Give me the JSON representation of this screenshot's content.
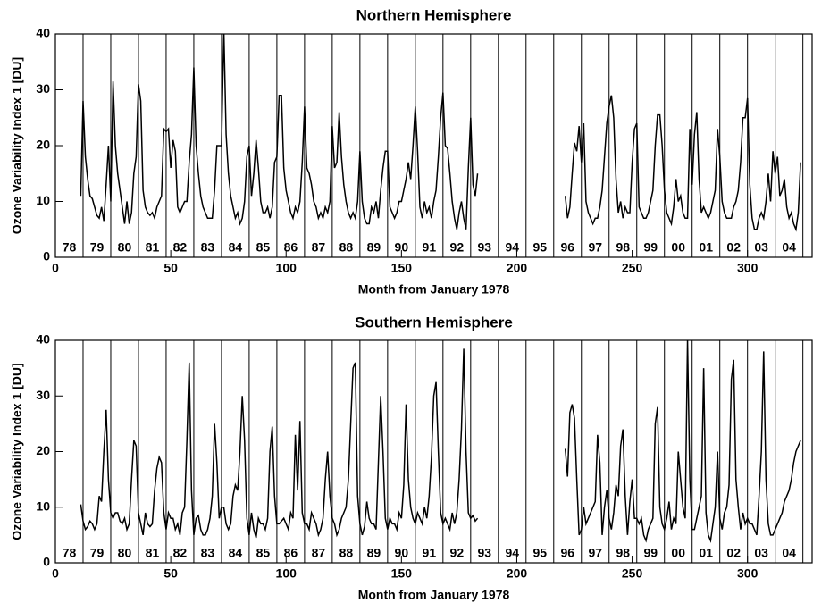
{
  "chart_data": [
    {
      "type": "line",
      "title": "Northern Hemisphere",
      "x_label": "Month from January 1978",
      "y_label": "Ozone Variability Index 1 [DU]",
      "xlim": [
        0,
        328
      ],
      "ylim": [
        0,
        40
      ],
      "xticks": [
        0,
        50,
        100,
        150,
        200,
        250,
        300
      ],
      "yticks": [
        0,
        10,
        20,
        30,
        40
      ],
      "year_lines": [
        12,
        24,
        36,
        48,
        60,
        72,
        84,
        96,
        108,
        120,
        132,
        144,
        156,
        168,
        180,
        192,
        204,
        216,
        228,
        240,
        252,
        264,
        276,
        288,
        300,
        312,
        324
      ],
      "year_labels": [
        "78",
        "79",
        "80",
        "81",
        "82",
        "83",
        "84",
        "85",
        "86",
        "87",
        "88",
        "89",
        "90",
        "91",
        "92",
        "93",
        "94",
        "95",
        "96",
        "97",
        "98",
        "99",
        "00",
        "01",
        "02",
        "03",
        "04"
      ],
      "x": [
        11,
        12,
        13,
        14,
        15,
        16,
        17,
        18,
        19,
        20,
        21,
        22,
        23,
        24,
        25,
        26,
        27,
        28,
        29,
        30,
        31,
        32,
        33,
        34,
        35,
        36,
        37,
        38,
        39,
        40,
        41,
        42,
        43,
        44,
        45,
        46,
        47,
        48,
        49,
        50,
        51,
        52,
        53,
        54,
        55,
        56,
        57,
        58,
        59,
        60,
        61,
        62,
        63,
        64,
        65,
        66,
        67,
        68,
        69,
        70,
        71,
        72,
        73,
        74,
        75,
        76,
        77,
        78,
        79,
        80,
        81,
        82,
        83,
        84,
        85,
        86,
        87,
        88,
        89,
        90,
        91,
        92,
        93,
        94,
        95,
        96,
        97,
        98,
        99,
        100,
        101,
        102,
        103,
        104,
        105,
        106,
        107,
        108,
        109,
        110,
        111,
        112,
        113,
        114,
        115,
        116,
        117,
        118,
        119,
        120,
        121,
        122,
        123,
        124,
        125,
        126,
        127,
        128,
        129,
        130,
        131,
        132,
        133,
        134,
        135,
        136,
        137,
        138,
        139,
        140,
        141,
        142,
        143,
        144,
        145,
        146,
        147,
        148,
        149,
        150,
        151,
        152,
        153,
        154,
        155,
        156,
        157,
        158,
        159,
        160,
        161,
        162,
        163,
        164,
        165,
        166,
        167,
        168,
        169,
        170,
        171,
        172,
        173,
        174,
        175,
        176,
        177,
        178,
        179,
        180,
        181,
        182,
        183,
        184,
        221,
        222,
        223,
        224,
        225,
        226,
        227,
        228,
        229,
        230,
        231,
        232,
        233,
        234,
        235,
        236,
        237,
        238,
        239,
        240,
        241,
        242,
        243,
        244,
        245,
        246,
        247,
        248,
        249,
        250,
        251,
        252,
        253,
        254,
        255,
        256,
        257,
        258,
        259,
        260,
        261,
        262,
        263,
        264,
        265,
        266,
        267,
        268,
        269,
        270,
        271,
        272,
        273,
        274,
        275,
        276,
        277,
        278,
        279,
        280,
        281,
        282,
        283,
        284,
        285,
        286,
        287,
        288,
        289,
        290,
        291,
        292,
        293,
        294,
        295,
        296,
        297,
        298,
        299,
        300,
        301,
        302,
        303,
        304,
        305,
        306,
        307,
        308,
        309,
        310,
        311,
        312,
        313,
        314,
        315,
        316,
        317,
        318,
        319,
        320,
        321,
        322,
        323
      ],
      "series": [
        {
          "color": "#000000",
          "values": [
            11,
            28,
            18,
            14,
            11,
            10.5,
            9,
            7.5,
            7,
            9,
            6.5,
            13,
            20,
            10,
            31.5,
            20,
            15,
            12,
            9,
            6,
            10,
            6,
            8,
            15,
            18,
            31,
            28,
            12,
            9,
            8,
            7.5,
            8,
            7,
            9,
            10,
            11,
            23,
            22.5,
            23,
            16,
            21,
            19,
            9,
            8,
            9,
            10,
            10,
            17,
            22,
            34,
            20,
            15,
            11,
            9,
            8,
            7,
            7,
            7,
            12,
            20,
            20,
            20,
            41,
            22,
            15,
            11,
            9,
            7,
            8,
            6,
            7,
            10,
            18,
            20,
            11,
            15,
            21,
            16,
            10,
            8,
            8,
            9,
            7,
            9,
            17,
            18,
            29,
            29,
            16,
            12,
            10,
            8,
            7,
            9,
            8,
            10,
            17,
            27,
            16,
            15,
            13,
            10,
            9,
            7,
            8,
            7,
            9,
            8,
            10,
            23.5,
            16,
            17,
            26,
            18,
            13,
            10,
            8,
            7,
            8,
            7,
            10,
            19,
            10,
            7,
            6,
            6,
            9,
            8,
            10,
            7,
            12,
            16,
            19,
            19,
            9,
            8,
            7,
            8,
            10,
            10,
            12,
            14,
            17,
            14,
            20,
            27,
            19,
            9,
            7,
            10,
            8,
            9,
            7,
            10,
            12,
            18,
            25,
            29.5,
            20,
            19.5,
            15,
            10,
            7,
            5,
            8,
            10,
            7,
            5,
            16,
            25,
            13,
            11,
            15,
            null,
            11,
            7,
            9,
            15,
            20.5,
            19,
            23.5,
            17,
            24,
            10,
            8,
            7,
            6,
            7,
            7,
            9,
            12,
            18,
            24,
            27,
            29,
            25,
            14,
            8,
            10,
            7,
            9,
            8,
            8,
            17,
            23,
            24,
            9,
            8,
            7,
            7,
            8,
            10,
            12,
            20,
            25.5,
            25.5,
            20,
            12,
            8,
            7,
            6,
            9,
            14,
            10,
            11,
            8,
            7,
            7,
            23,
            13,
            22,
            26,
            14,
            8,
            9,
            8,
            7,
            8,
            10,
            12,
            23,
            18,
            10,
            8,
            7,
            7,
            7,
            9,
            10,
            12,
            17,
            25,
            25,
            28.5,
            13,
            7,
            5,
            5,
            7,
            8,
            7,
            10,
            15,
            10,
            19,
            15,
            18,
            11,
            12,
            14,
            9,
            7,
            8,
            6,
            5,
            8,
            17
          ]
        }
      ]
    },
    {
      "type": "line",
      "title": "Southern Hemisphere",
      "x_label": "Month from January 1978",
      "y_label": "Ozone Variability Index 1 [DU]",
      "xlim": [
        0,
        328
      ],
      "ylim": [
        0,
        40
      ],
      "xticks": [
        0,
        50,
        100,
        150,
        200,
        250,
        300
      ],
      "yticks": [
        0,
        10,
        20,
        30,
        40
      ],
      "year_lines": [
        12,
        24,
        36,
        48,
        60,
        72,
        84,
        96,
        108,
        120,
        132,
        144,
        156,
        168,
        180,
        192,
        204,
        216,
        228,
        240,
        252,
        264,
        276,
        288,
        300,
        312,
        324
      ],
      "year_labels": [
        "78",
        "79",
        "80",
        "81",
        "82",
        "83",
        "84",
        "85",
        "86",
        "87",
        "88",
        "89",
        "90",
        "91",
        "92",
        "93",
        "94",
        "95",
        "96",
        "97",
        "98",
        "99",
        "00",
        "01",
        "02",
        "03",
        "04"
      ],
      "x": [
        11,
        12,
        13,
        14,
        15,
        16,
        17,
        18,
        19,
        20,
        21,
        22,
        23,
        24,
        25,
        26,
        27,
        28,
        29,
        30,
        31,
        32,
        33,
        34,
        35,
        36,
        37,
        38,
        39,
        40,
        41,
        42,
        43,
        44,
        45,
        46,
        47,
        48,
        49,
        50,
        51,
        52,
        53,
        54,
        55,
        56,
        57,
        58,
        59,
        60,
        61,
        62,
        63,
        64,
        65,
        66,
        67,
        68,
        69,
        70,
        71,
        72,
        73,
        74,
        75,
        76,
        77,
        78,
        79,
        80,
        81,
        82,
        83,
        84,
        85,
        86,
        87,
        88,
        89,
        90,
        91,
        92,
        93,
        94,
        95,
        96,
        97,
        98,
        99,
        100,
        101,
        102,
        103,
        104,
        105,
        106,
        107,
        108,
        109,
        110,
        111,
        112,
        113,
        114,
        115,
        116,
        117,
        118,
        119,
        120,
        121,
        122,
        123,
        124,
        125,
        126,
        127,
        128,
        129,
        130,
        131,
        132,
        133,
        134,
        135,
        136,
        137,
        138,
        139,
        140,
        141,
        142,
        143,
        144,
        145,
        146,
        147,
        148,
        149,
        150,
        151,
        152,
        153,
        154,
        155,
        156,
        157,
        158,
        159,
        160,
        161,
        162,
        163,
        164,
        165,
        166,
        167,
        168,
        169,
        170,
        171,
        172,
        173,
        174,
        175,
        176,
        177,
        178,
        179,
        180,
        181,
        182,
        183,
        184,
        221,
        222,
        223,
        224,
        225,
        226,
        227,
        228,
        229,
        230,
        231,
        232,
        233,
        234,
        235,
        236,
        237,
        238,
        239,
        240,
        241,
        242,
        243,
        244,
        245,
        246,
        247,
        248,
        249,
        250,
        251,
        252,
        253,
        254,
        255,
        256,
        257,
        258,
        259,
        260,
        261,
        262,
        263,
        264,
        265,
        266,
        267,
        268,
        269,
        270,
        271,
        272,
        273,
        274,
        275,
        276,
        277,
        278,
        279,
        280,
        281,
        282,
        283,
        284,
        285,
        286,
        287,
        288,
        289,
        290,
        291,
        292,
        293,
        294,
        295,
        296,
        297,
        298,
        299,
        300,
        301,
        302,
        303,
        304,
        305,
        306,
        307,
        308,
        309,
        310,
        311,
        312,
        313,
        314,
        315,
        316,
        317,
        318,
        319,
        320,
        321,
        322,
        323
      ],
      "series": [
        {
          "color": "#000000",
          "values": [
            10.5,
            7.5,
            6,
            6.5,
            7.5,
            7,
            6,
            7,
            12,
            11,
            20,
            27.5,
            15,
            9,
            8,
            9,
            9,
            7.5,
            7,
            8,
            6,
            7,
            15,
            22,
            21,
            9,
            7,
            5,
            9,
            7,
            6.5,
            7,
            13,
            17,
            19,
            18,
            9,
            6,
            9,
            8,
            8,
            6,
            7,
            5,
            9,
            10,
            22,
            36,
            13,
            5,
            8,
            8.5,
            6,
            5,
            5,
            6,
            8,
            12,
            25,
            18,
            8,
            10,
            10,
            7,
            6,
            7,
            12,
            14,
            13,
            20,
            30,
            22,
            8,
            5,
            9,
            6,
            4.5,
            8,
            7,
            7,
            6,
            8,
            20,
            24.5,
            12,
            7,
            7,
            7.5,
            8,
            7,
            6,
            9,
            8,
            23,
            13,
            25.5,
            9,
            7,
            7,
            6,
            9,
            8,
            7,
            5,
            6,
            8,
            15,
            20,
            12,
            8,
            7,
            5,
            6,
            8,
            9,
            10,
            15,
            25,
            35,
            36,
            12,
            7,
            5,
            6.5,
            11,
            8,
            7,
            7,
            6,
            18,
            30,
            20,
            8,
            6,
            8,
            7,
            7,
            6,
            9,
            8,
            14,
            28.5,
            15,
            10,
            8,
            7,
            9,
            8,
            7,
            10,
            8,
            12,
            19,
            30,
            32.5,
            20,
            9,
            7,
            8,
            7,
            6,
            9,
            7,
            9,
            15,
            24,
            38.5,
            20,
            9,
            8,
            8.5,
            7.5,
            8,
            null,
            20.5,
            15.5,
            27,
            28.5,
            26,
            15,
            5,
            6,
            10,
            7,
            8,
            9,
            10,
            11,
            23,
            18,
            5,
            10,
            13,
            8,
            6,
            9,
            14,
            12,
            21,
            24,
            12,
            5,
            11,
            15,
            8,
            8,
            7,
            8,
            5,
            4,
            6,
            7,
            8,
            25,
            28,
            10,
            7,
            6,
            8,
            11,
            6,
            8,
            7,
            20,
            15,
            10,
            8,
            40,
            15,
            6,
            6,
            8,
            10,
            12,
            35,
            9,
            5,
            4,
            7,
            10,
            20,
            8,
            6,
            9,
            10,
            14,
            33,
            36.5,
            15,
            10,
            6,
            9,
            7,
            8,
            7,
            7,
            6,
            5,
            12,
            20,
            38,
            15,
            7,
            5,
            5,
            6,
            7,
            8,
            9,
            11,
            12,
            13,
            15,
            18,
            20,
            21,
            22
          ]
        }
      ]
    }
  ]
}
